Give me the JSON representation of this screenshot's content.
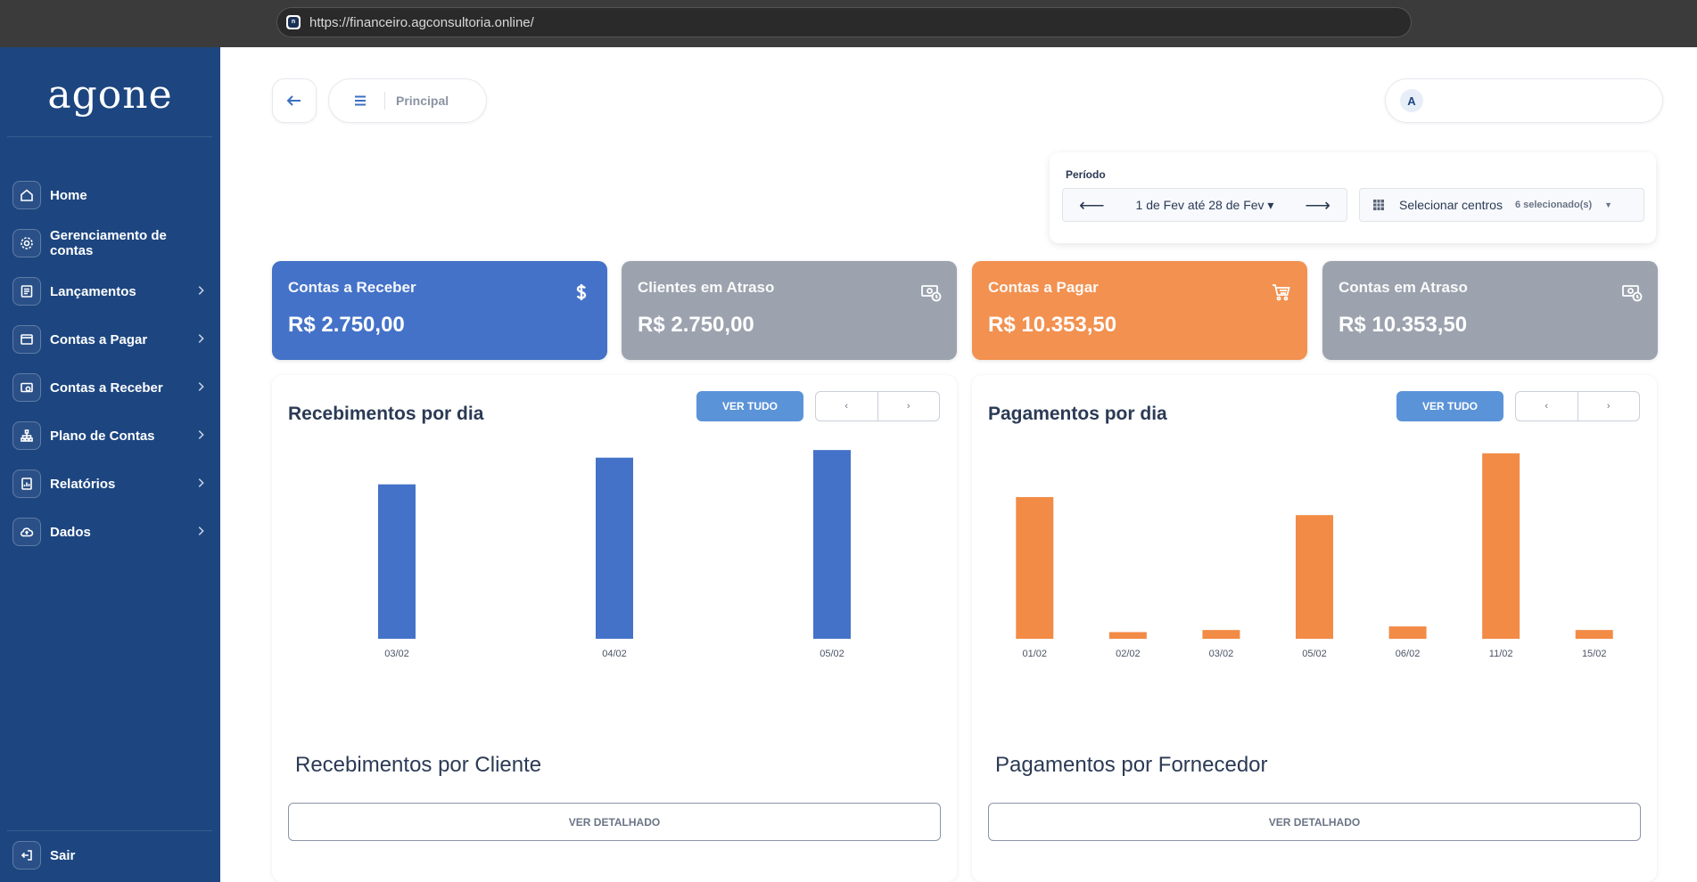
{
  "browser": {
    "url": "https://financeiro.agconsultoria.online/",
    "favicon": "n"
  },
  "sidebar": {
    "logo": "agone",
    "items": [
      {
        "label": "Home",
        "icon": "home-icon",
        "chevron": false
      },
      {
        "label": "Gerenciamento de contas",
        "icon": "gear-icon",
        "chevron": false
      },
      {
        "label": "Lançamentos",
        "icon": "ledger-icon",
        "chevron": true
      },
      {
        "label": "Contas a Pagar",
        "icon": "wallet-icon",
        "chevron": true
      },
      {
        "label": "Contas a Receber",
        "icon": "money-icon",
        "chevron": true
      },
      {
        "label": "Plano de Contas",
        "icon": "hierarchy-icon",
        "chevron": true
      },
      {
        "label": "Relatórios",
        "icon": "report-icon",
        "chevron": true
      },
      {
        "label": "Dados",
        "icon": "cloud-icon",
        "chevron": true
      }
    ],
    "logout": "Sair"
  },
  "header": {
    "breadcrumb": "Principal",
    "user_initial": "A"
  },
  "filter": {
    "label": "Período",
    "range": "1 de Fev até 28 de Fev ▾",
    "prev": "⟵",
    "next": "⟶",
    "centros_label": "Selecionar centros",
    "centros_count": "6 selecionado(s)"
  },
  "kpis": [
    {
      "title": "Contas a Receber",
      "value": "R$ 2.750,00",
      "color": "#4472c8",
      "icon": "dollar-icon"
    },
    {
      "title": "Clientes em Atraso",
      "value": "R$ 2.750,00",
      "color": "#9ca3ae",
      "icon": "overdue-money-icon"
    },
    {
      "title": "Contas a Pagar",
      "value": "R$ 10.353,50",
      "color": "#f29150",
      "icon": "cart-icon"
    },
    {
      "title": "Contas em Atraso",
      "value": "R$ 10.353,50",
      "color": "#9ca3ae",
      "icon": "overdue-money-icon"
    }
  ],
  "panels": [
    {
      "title": "Recebimentos por dia",
      "ver_tudo": "VER TUDO",
      "prev": "‹",
      "next": "›",
      "section": "Recebimentos por Cliente",
      "detail": "VER DETALHADO"
    },
    {
      "title": "Pagamentos por dia",
      "ver_tudo": "VER TUDO",
      "prev": "‹",
      "next": "›",
      "section": "Pagamentos por Fornecedor",
      "detail": "VER DETALHADO"
    }
  ],
  "chart_data": [
    {
      "type": "bar",
      "title": "Recebimentos por dia",
      "categories": [
        "03/02",
        "04/02",
        "05/02"
      ],
      "values": [
        810,
        950,
        990
      ],
      "color": "#4472c8",
      "ylim": [
        0,
        1000
      ],
      "grid": false
    },
    {
      "type": "bar",
      "title": "Pagamentos por dia",
      "categories": [
        "01/02",
        "02/02",
        "03/02",
        "05/02",
        "06/02",
        "11/02",
        "15/02"
      ],
      "values": [
        2750,
        130,
        170,
        2400,
        240,
        3600,
        170
      ],
      "color": "#f28b46",
      "ylim": [
        0,
        3700
      ],
      "grid": false
    }
  ]
}
